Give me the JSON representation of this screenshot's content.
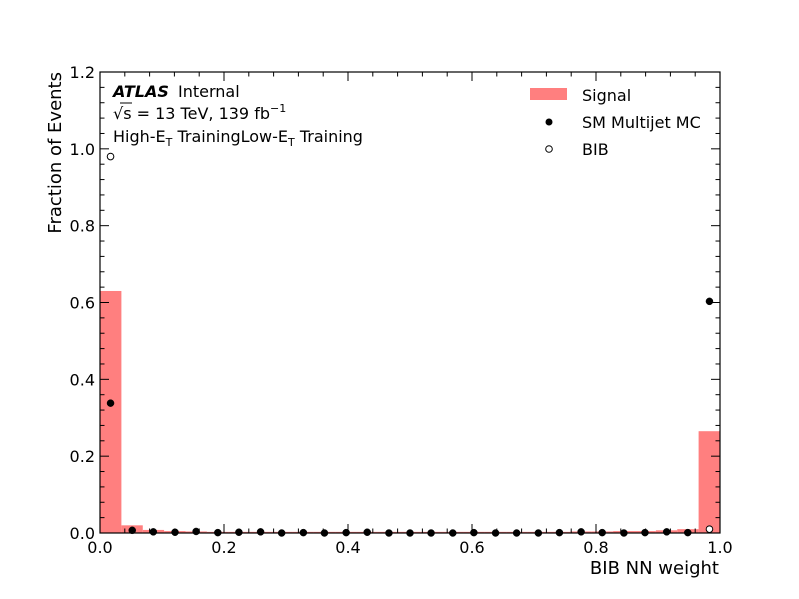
{
  "chart_data": {
    "type": "bar",
    "title": "",
    "xlabel": "BIB NN weight",
    "ylabel": "Fraction of Events",
    "xlim": [
      0.0,
      1.0
    ],
    "ylim": [
      0.0,
      1.2
    ],
    "x_ticks": [
      "0.0",
      "0.2",
      "0.4",
      "0.6",
      "0.8",
      "1.0"
    ],
    "y_ticks": [
      "0.0",
      "0.2",
      "0.4",
      "0.6",
      "0.8",
      "1.0",
      "1.2"
    ],
    "bin_edges": [
      0.0,
      0.0345,
      0.069,
      0.1034,
      0.1379,
      0.1724,
      0.2069,
      0.2414,
      0.2759,
      0.3103,
      0.3448,
      0.3793,
      0.4138,
      0.4483,
      0.4828,
      0.5172,
      0.5517,
      0.5862,
      0.6207,
      0.6552,
      0.6897,
      0.7241,
      0.7586,
      0.7931,
      0.8276,
      0.8621,
      0.8966,
      0.931,
      0.9655,
      1.0
    ],
    "bin_centers": [
      0.017,
      0.052,
      0.086,
      0.121,
      0.155,
      0.19,
      0.224,
      0.259,
      0.293,
      0.328,
      0.362,
      0.397,
      0.431,
      0.466,
      0.5,
      0.534,
      0.569,
      0.603,
      0.638,
      0.672,
      0.707,
      0.741,
      0.776,
      0.81,
      0.845,
      0.879,
      0.914,
      0.948,
      0.983
    ],
    "series": [
      {
        "name": "Signal",
        "style": "filled-histogram",
        "color": "#ff7f7f",
        "values": [
          0.63,
          0.02,
          0.008,
          0.005,
          0.004,
          0.003,
          0.003,
          0.003,
          0.003,
          0.003,
          0.003,
          0.003,
          0.003,
          0.003,
          0.003,
          0.003,
          0.003,
          0.003,
          0.003,
          0.003,
          0.003,
          0.003,
          0.004,
          0.004,
          0.005,
          0.005,
          0.007,
          0.01,
          0.265
        ]
      },
      {
        "name": "SM Multijet MC",
        "style": "filled-marker",
        "color": "#000000",
        "values": [
          0.338,
          0.007,
          0.003,
          0.002,
          0.004,
          0.001,
          0.002,
          0.003,
          0.0,
          0.001,
          0.0,
          0.001,
          0.002,
          0.0,
          0.0,
          0.0,
          0.0,
          0.001,
          0.0,
          0.0,
          0.0,
          0.001,
          0.003,
          0.001,
          0.0,
          0.001,
          0.003,
          0.001,
          0.603
        ]
      },
      {
        "name": "BIB",
        "style": "open-marker",
        "color": "#000000",
        "values": [
          0.98,
          null,
          null,
          null,
          null,
          null,
          null,
          null,
          null,
          null,
          null,
          null,
          null,
          null,
          null,
          null,
          null,
          null,
          null,
          null,
          null,
          null,
          null,
          null,
          null,
          null,
          null,
          null,
          0.01
        ]
      }
    ],
    "legend_position": "top-right",
    "annotations": {
      "experiment": "ATLAS",
      "status": "Internal",
      "energy_lumi_root": "√s",
      "energy_lumi_value": " =  13 TeV, 139 fb",
      "lumi_sup": "−1",
      "training_high": "High-E",
      "training_high_sub": "T",
      "training_high_rest": " Training",
      "training_low": "Low-E",
      "training_low_sub": "T",
      "training_low_rest": " Training"
    }
  }
}
